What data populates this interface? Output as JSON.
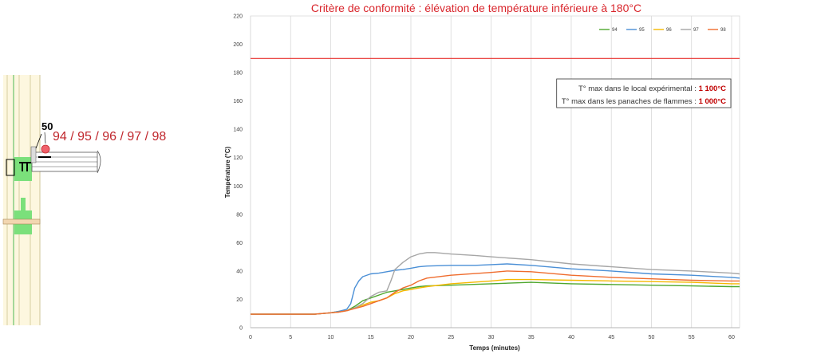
{
  "sketch": {
    "dimension_label": "50",
    "sensor_label": "94 / 95 / 96 / 97 / 98"
  },
  "annotation": {
    "line1_text": "T° max dans le local expérimental : ",
    "line1_value": "1 100°C",
    "line2_text": "T° max dans les panaches de flammes : ",
    "line2_value": "1 000°C"
  },
  "chart_data": {
    "type": "line",
    "title": "Critère de conformité : élévation de température inférieure à 180°C",
    "xlabel": "Temps (minutes)",
    "ylabel": "Température (°C)",
    "xlim": [
      0,
      61
    ],
    "ylim": [
      0,
      220
    ],
    "xticks": [
      0,
      5,
      10,
      15,
      20,
      25,
      30,
      35,
      40,
      45,
      50,
      55,
      60
    ],
    "yticks": [
      0,
      20,
      40,
      60,
      80,
      100,
      120,
      140,
      160,
      180,
      200,
      220
    ],
    "grid": "vertical",
    "legend_position": "top-right",
    "threshold": {
      "value": 190,
      "color": "#e8322f"
    },
    "series": [
      {
        "name": "94",
        "color": "#4ea72e",
        "x": [
          0,
          8,
          10,
          11,
          12,
          13,
          14,
          15,
          16,
          17,
          18,
          19,
          20,
          21,
          22,
          25,
          30,
          35,
          40,
          45,
          50,
          55,
          60,
          61
        ],
        "y": [
          9.5,
          9.5,
          10.5,
          11.5,
          12,
          15,
          19,
          21,
          23,
          25,
          26,
          27,
          28,
          29,
          29.5,
          30,
          31,
          32,
          31,
          30.5,
          30,
          29.5,
          29,
          29
        ]
      },
      {
        "name": "95",
        "color": "#4a8fd6",
        "x": [
          0,
          8,
          10,
          11,
          12,
          12.5,
          13,
          13.5,
          14,
          15,
          16,
          17,
          18,
          19,
          20,
          21,
          22,
          25,
          28,
          30,
          32,
          35,
          40,
          45,
          50,
          55,
          60,
          61
        ],
        "y": [
          9.5,
          9.5,
          10.5,
          11.5,
          13,
          17,
          28,
          33,
          36,
          38,
          38.5,
          39.5,
          40.5,
          41,
          42,
          43,
          43.5,
          44,
          44,
          44.5,
          45,
          44,
          41.5,
          40,
          38,
          37,
          35.5,
          35
        ]
      },
      {
        "name": "96",
        "color": "#f5b800",
        "x": [
          0,
          8,
          10,
          11,
          12,
          13,
          14,
          15,
          16,
          17,
          18,
          19,
          20,
          21,
          22,
          25,
          30,
          32,
          35,
          40,
          45,
          50,
          55,
          60,
          61
        ],
        "y": [
          9.5,
          9.5,
          10.5,
          11,
          12,
          14,
          16,
          18,
          19,
          21,
          24,
          26,
          27,
          28,
          29,
          31,
          33,
          34,
          34,
          33.5,
          33,
          32.5,
          32,
          31,
          31
        ]
      },
      {
        "name": "97",
        "color": "#a6a6a6",
        "x": [
          0,
          8,
          10,
          11,
          12,
          13,
          14,
          15,
          16,
          17,
          17.5,
          18,
          19,
          20,
          21,
          22,
          23,
          25,
          28,
          30,
          35,
          40,
          45,
          50,
          55,
          60,
          61
        ],
        "y": [
          9.5,
          9.5,
          10.5,
          11,
          12,
          14,
          17,
          22,
          25,
          26,
          33,
          41,
          46,
          50,
          52,
          53,
          53,
          52,
          51,
          50,
          48,
          45,
          43,
          41,
          40,
          38.5,
          38
        ]
      },
      {
        "name": "98",
        "color": "#ef6c2d",
        "x": [
          0,
          8,
          10,
          11,
          12,
          13,
          14,
          15,
          16,
          17,
          18,
          19,
          20,
          21,
          22,
          25,
          30,
          32,
          35,
          40,
          45,
          50,
          55,
          60,
          61
        ],
        "y": [
          9.5,
          9.5,
          10.5,
          11,
          12,
          13.5,
          15,
          17,
          19,
          21,
          25,
          28,
          30,
          33,
          35,
          37,
          39,
          40,
          39.5,
          37,
          35.5,
          34.5,
          33.5,
          33,
          33
        ]
      }
    ]
  }
}
